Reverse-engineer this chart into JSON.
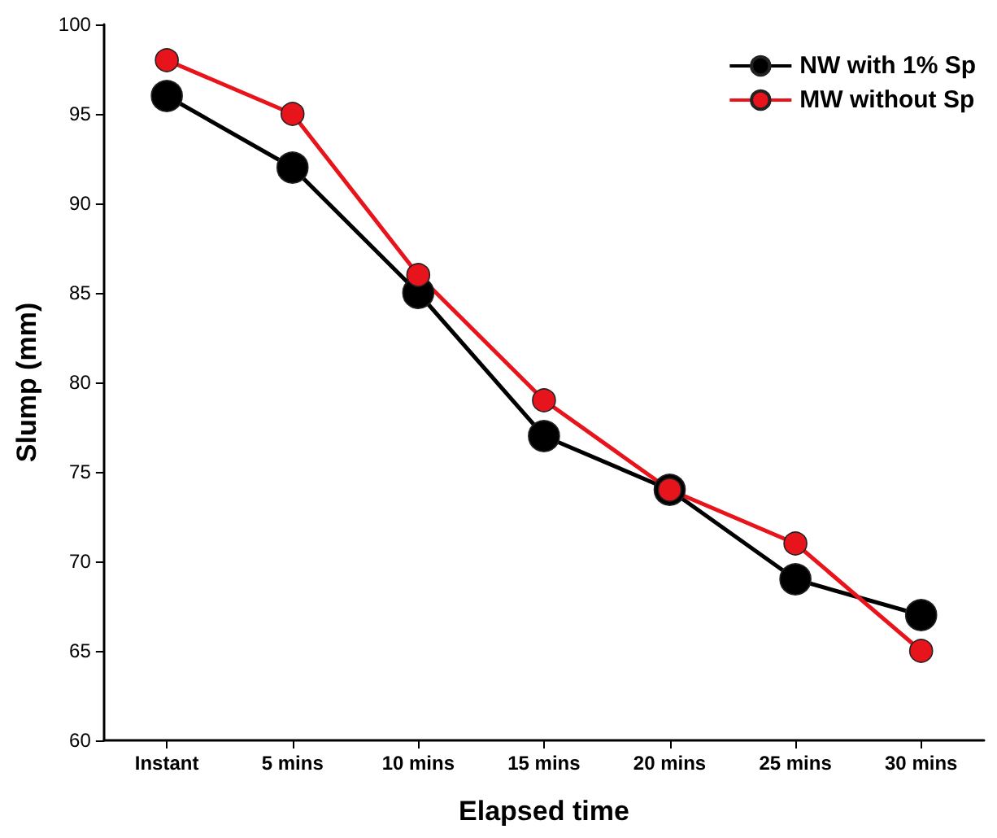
{
  "chart_data": {
    "type": "line",
    "xlabel": "Elapsed time",
    "ylabel": "Slump (mm)",
    "categories": [
      "Instant",
      "5 mins",
      "10 mins",
      "15 mins",
      "20 mins",
      "25 mins",
      "30 mins"
    ],
    "series": [
      {
        "name": "NW with 1% Sp",
        "color": "#000000",
        "values": [
          96,
          92,
          85,
          77,
          74,
          69,
          67
        ]
      },
      {
        "name": "MW without Sp",
        "color": "#e8141b",
        "values": [
          98,
          95,
          86,
          79,
          74,
          71,
          65
        ]
      }
    ],
    "ylim": [
      60,
      100
    ],
    "yticks": [
      60,
      65,
      70,
      75,
      80,
      85,
      90,
      95,
      100
    ],
    "grid": false,
    "legend": "top right",
    "marker": "circle",
    "line_style": "solid"
  }
}
